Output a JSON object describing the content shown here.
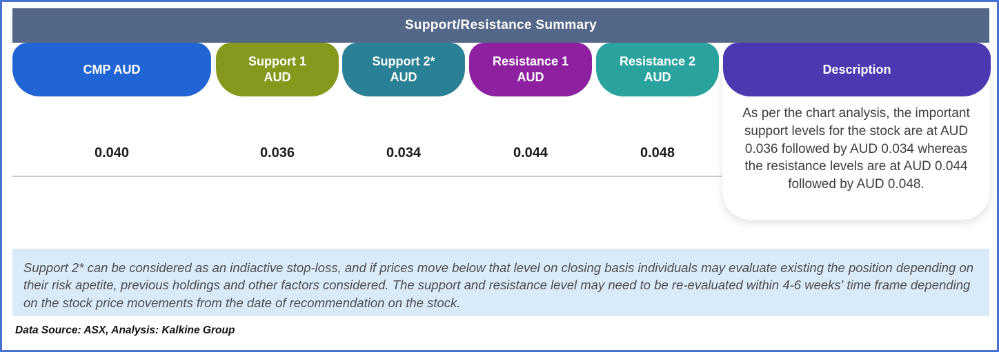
{
  "page": {
    "title": "Support/Resistance Summary"
  },
  "colors": {
    "outer_border": "#4673cf",
    "header_bg": "#546789",
    "cmp_pill": "#2165d4",
    "support1_pill": "#86991d",
    "support2_pill": "#2a8094",
    "resistance1_pill": "#8d21a0",
    "resistance2_pill": "#2aa39f",
    "description_pill": "#4c39b2",
    "note_bg": "#d9eaf8",
    "separator": "#c9c9c9"
  },
  "table": {
    "header": "Support/Resistance Summary",
    "columns": [
      {
        "label": "CMP AUD",
        "color": "#2165d4",
        "value": "0.040"
      },
      {
        "label": "Support 1\nAUD",
        "color": "#86991d",
        "value": "0.036"
      },
      {
        "label": "Support 2*\nAUD",
        "color": "#2a8094",
        "value": "0.034"
      },
      {
        "label": "Resistance 1\nAUD",
        "color": "#8d21a0",
        "value": "0.044"
      },
      {
        "label": "Resistance 2\nAUD",
        "color": "#2aa39f",
        "value": "0.048"
      },
      {
        "label": "Description",
        "color": "#4c39b2"
      }
    ],
    "description": "As per the chart analysis, the important support levels for the stock are at AUD 0.036 followed by AUD 0.034 whereas the resistance levels are at AUD 0.044 followed by AUD 0.048."
  },
  "footnote": "Support 2* can be considered as an indiactive stop-loss, and if prices move below that level on closing basis individuals may evaluate existing the position depending on their risk apetite, previous holdings and other factors considered. The support and resistance level may need to be re-evaluated within 4-6 weeks' time frame depending on the stock price movements from  the date of recommendation on the stock.",
  "source": "Data Source: ASX, Analysis: Kalkine Group",
  "chart_data": {
    "type": "table",
    "title": "Support/Resistance Summary",
    "columns": [
      "CMP AUD",
      "Support 1 AUD",
      "Support 2* AUD",
      "Resistance 1 AUD",
      "Resistance 2 AUD",
      "Description"
    ],
    "rows": [
      [
        "0.040",
        "0.036",
        "0.034",
        "0.044",
        "0.048",
        "As per the chart analysis, the important support levels for the stock are at AUD 0.036 followed by AUD 0.034 whereas the resistance levels are at AUD 0.044 followed by AUD 0.048."
      ]
    ]
  }
}
